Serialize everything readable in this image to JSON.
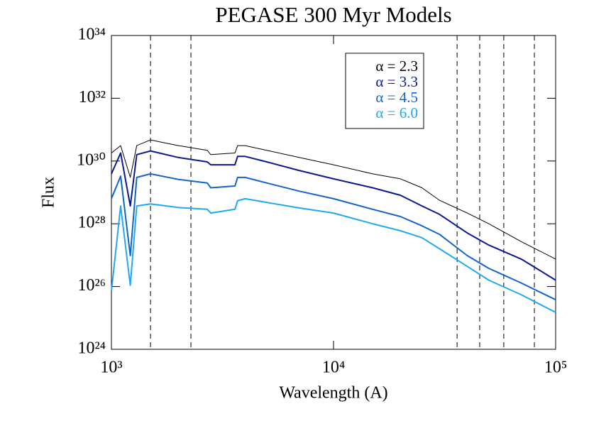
{
  "chart_data": {
    "type": "line",
    "title": "PEGASE 300 Myr Models",
    "x_label": "Wavelength (A)",
    "y_label": "Flux",
    "x_log": true,
    "y_log": true,
    "legend_position": "upper right",
    "x": [
      1000,
      1100,
      1216,
      1300,
      1500,
      2000,
      2700,
      2800,
      3600,
      3700,
      4000,
      5000,
      7000,
      10000,
      15000,
      20000,
      25000,
      30000,
      40000,
      50000,
      70000,
      100000
    ],
    "series": [
      {
        "name": "α = 2.3",
        "color": "#000000",
        "values": [
          1.8e+30,
          3.1e+30,
          3e+29,
          3.1e+30,
          4.7e+30,
          3.1e+30,
          2.2e+30,
          1.6e+30,
          1.8e+30,
          3.1e+30,
          3.1e+30,
          2.2e+30,
          1.3e+30,
          7.6e+29,
          3.9e+29,
          2.7e+29,
          1.4e+29,
          5.6e+28,
          2.2e+28,
          1e+28,
          2.7e+27,
          7.5e+26
        ]
      },
      {
        "name": "α = 3.3",
        "color": "#0a1a8c",
        "values": [
          3.9e+29,
          1.8e+30,
          3.7e+28,
          1.6e+30,
          2.1e+30,
          1.3e+30,
          9.4e+29,
          7.6e+29,
          7.6e+29,
          1.4e+30,
          1.4e+30,
          9.4e+29,
          5e+29,
          2.7e+29,
          1.4e+29,
          8.1e+28,
          3.7e+28,
          2e+28,
          5.1e+27,
          2.1e+27,
          7.5e+26,
          1.6e+26
        ]
      },
      {
        "name": "α = 4.5",
        "color": "#1464c8",
        "values": [
          6.3e+28,
          3.3e+29,
          9.7e+26,
          3e+29,
          3.9e+29,
          2.6e+29,
          2e+29,
          1.4e+29,
          1.6e+29,
          3e+29,
          3e+29,
          2e+29,
          1.1e+29,
          6.3e+28,
          2.9e+28,
          1.7e+28,
          8.6e+27,
          4.6e+27,
          9.7e+26,
          3.8e+26,
          1.3e+26,
          3.8e+25
        ]
      },
      {
        "name": "α = 6.0",
        "color": "#22a8f0",
        "values": [
          7.2e+25,
          3.7e+28,
          1.1e+26,
          3.7e+28,
          4.3e+28,
          3.3e+28,
          2.9e+28,
          2.2e+28,
          2.9e+28,
          5.4e+28,
          6.3e+28,
          4.8e+28,
          3.2e+28,
          2.2e+28,
          1e+28,
          6e+27,
          3.6e+27,
          1.6e+27,
          4.4e+26,
          1.6e+26,
          5.5e+25,
          1.5e+25
        ]
      }
    ],
    "vlines": [
      1500,
      2280,
      36000,
      45500,
      58400,
      80200
    ],
    "xlim": [
      1000,
      100000
    ],
    "xticks": [
      {
        "value": 1000,
        "label": "10³"
      },
      {
        "value": 10000,
        "label": "10⁴"
      },
      {
        "value": 100000,
        "label": "10⁵"
      }
    ],
    "ylim": [
      1e+24,
      1e+34
    ],
    "yticks": [
      {
        "value": 1e+24,
        "label": "10²⁴"
      },
      {
        "value": 1e+26,
        "label": "10²⁶"
      },
      {
        "value": 1e+28,
        "label": "10²⁸"
      },
      {
        "value": 1e+30,
        "label": "10³⁰"
      },
      {
        "value": 1e+32,
        "label": "10³²"
      },
      {
        "value": 1e+34,
        "label": "10³⁴"
      }
    ]
  }
}
